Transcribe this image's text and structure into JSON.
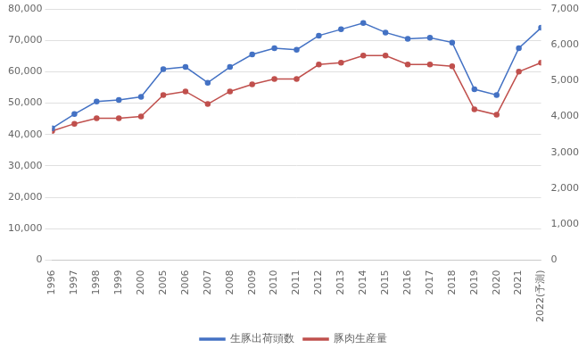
{
  "chart_data": {
    "type": "line",
    "categories": [
      "1996",
      "1997",
      "1998",
      "1999",
      "2000",
      "2005",
      "2006",
      "2007",
      "2008",
      "2009",
      "2010",
      "2011",
      "2012",
      "2013",
      "2014",
      "2015",
      "2016",
      "2017",
      "2018",
      "2019",
      "2020",
      "2021",
      "2022(予測)"
    ],
    "series": [
      {
        "name": "生豚出荷頭数",
        "color": "#4472C4",
        "marker": "circle",
        "values": [
          42000,
          46500,
          50500,
          51000,
          52000,
          60800,
          61500,
          56500,
          61500,
          65500,
          67500,
          67000,
          71500,
          73500,
          75500,
          72500,
          70500,
          70800,
          69300,
          54400,
          52600,
          67500,
          74000
        ]
      },
      {
        "name": "豚肉生産量",
        "color": "#C0504D",
        "marker": "circle",
        "axis": "y2",
        "values": [
          3600,
          3800,
          3950,
          3950,
          4000,
          4600,
          4700,
          4350,
          4700,
          4900,
          5050,
          5050,
          5450,
          5500,
          5700,
          5700,
          5450,
          5450,
          5400,
          4200,
          4050,
          5250,
          5500
        ]
      }
    ],
    "ylim": [
      0,
      80000
    ],
    "yticks": [
      0,
      {
        "value": 10000,
        "label": "10,000"
      },
      {
        "value": 20000,
        "label": "20,000"
      },
      {
        "value": 30000,
        "label": "30,000"
      },
      {
        "value": 40000,
        "label": "40,000"
      },
      {
        "value": 50000,
        "label": "50,000"
      },
      {
        "value": 60000,
        "label": "60,000"
      },
      {
        "value": 70000,
        "label": "70,000"
      },
      {
        "value": 80000,
        "label": "80,000"
      }
    ],
    "y2lim": [
      0,
      7000
    ],
    "y2ticks": [
      0,
      {
        "value": 1000,
        "label": "1,000"
      },
      {
        "value": 2000,
        "label": "2,000"
      },
      {
        "value": 3000,
        "label": "3,000"
      },
      {
        "value": 4000,
        "label": "4,000"
      },
      {
        "value": 5000,
        "label": "5,000"
      },
      {
        "value": 6000,
        "label": "6,000"
      },
      {
        "value": 7000,
        "label": "7,000"
      }
    ],
    "grid": true,
    "legend": "bottom"
  }
}
